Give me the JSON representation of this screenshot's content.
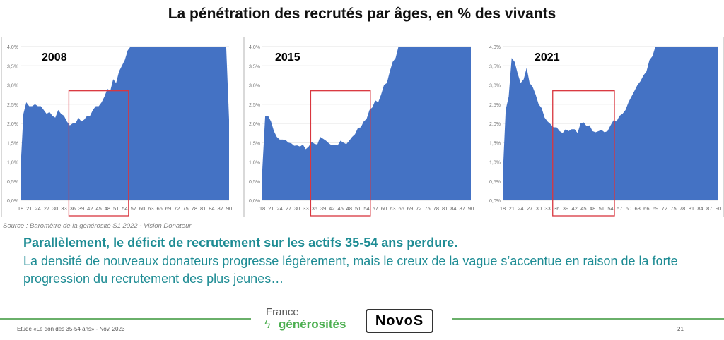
{
  "title": "La pénétration des recrutés par âges, en % des vivants",
  "source": "Source : Baromètre de la générosité S1 2022 - Vision Donateur",
  "lead": "Parallèlement, le déficit de recrutement sur les actifs 35-54 ans perdure.",
  "body": "La densité de nouveaux donateurs progresse légèrement, mais le creux de la vague s’accentue en raison de la forte progression du recrutement des plus jeunes…",
  "footer": {
    "study": "Etude «Le don des 35-54 ans» - Nov. 2023",
    "page": "21",
    "logo_france": "France",
    "logo_generosites": "générosités",
    "logo_novo": "NovoS"
  },
  "colors": {
    "area": "#4472c4",
    "highlight_box": "#d9363e",
    "text_accent": "#1e8c94",
    "footer_line": "#6ab06a"
  },
  "chart_data": [
    {
      "type": "area",
      "title": "2008",
      "x_start": 18,
      "x_end": 90,
      "xticks": [
        18,
        21,
        24,
        27,
        30,
        33,
        36,
        39,
        42,
        45,
        48,
        51,
        54,
        57,
        60,
        63,
        66,
        69,
        72,
        75,
        78,
        81,
        84,
        87,
        90
      ],
      "yticks": [
        "0,0%",
        "0,5%",
        "1,0%",
        "1,5%",
        "2,0%",
        "2,5%",
        "3,0%",
        "3,5%",
        "4,0%"
      ],
      "ylim": [
        0,
        4
      ],
      "grid": true,
      "highlight": {
        "x": [
          35,
          55
        ],
        "label": "35-54"
      },
      "values": [
        0.8,
        2.25,
        2.55,
        2.45,
        2.45,
        2.5,
        2.45,
        2.45,
        2.35,
        2.25,
        2.3,
        2.2,
        2.15,
        2.35,
        2.25,
        2.2,
        2.05,
        1.95,
        2.0,
        2.0,
        2.15,
        2.05,
        2.1,
        2.2,
        2.2,
        2.35,
        2.45,
        2.45,
        2.55,
        2.7,
        2.9,
        2.85,
        3.15,
        3.05,
        3.35,
        3.5,
        3.65,
        3.9,
        4,
        4,
        4,
        4,
        4,
        4,
        4,
        4,
        4,
        4,
        4,
        4,
        4,
        4,
        4,
        4,
        4,
        4,
        4,
        4,
        4,
        4,
        4,
        4,
        4,
        4,
        4,
        4,
        4,
        4,
        4,
        4,
        4,
        4,
        2.1
      ]
    },
    {
      "type": "area",
      "title": "2015",
      "x_start": 18,
      "x_end": 90,
      "xticks": [
        18,
        21,
        24,
        27,
        30,
        33,
        36,
        39,
        42,
        45,
        48,
        51,
        54,
        57,
        60,
        63,
        66,
        69,
        72,
        75,
        78,
        81,
        84,
        87,
        90
      ],
      "yticks": [
        "0,0%",
        "0,5%",
        "1,0%",
        "1,5%",
        "2,0%",
        "2,5%",
        "3,0%",
        "3,5%",
        "4,0%"
      ],
      "ylim": [
        0,
        4
      ],
      "grid": true,
      "highlight": {
        "x": [
          35,
          55
        ],
        "label": "35-54"
      },
      "values": [
        0.8,
        2.2,
        2.2,
        2.05,
        1.8,
        1.65,
        1.58,
        1.58,
        1.57,
        1.5,
        1.48,
        1.42,
        1.43,
        1.4,
        1.45,
        1.33,
        1.4,
        1.52,
        1.47,
        1.45,
        1.65,
        1.6,
        1.55,
        1.48,
        1.43,
        1.44,
        1.43,
        1.55,
        1.5,
        1.46,
        1.55,
        1.65,
        1.72,
        1.88,
        1.9,
        2.05,
        2.12,
        2.35,
        2.42,
        2.6,
        2.55,
        2.75,
        3.0,
        3.05,
        3.35,
        3.6,
        3.7,
        4,
        4,
        4,
        4,
        4,
        4,
        4,
        4,
        4,
        4,
        4,
        4,
        4,
        4,
        4,
        4,
        4,
        4,
        4,
        4,
        4,
        4,
        4,
        4,
        4,
        4
      ]
    },
    {
      "type": "area",
      "title": "2021",
      "x_start": 18,
      "x_end": 90,
      "xticks": [
        18,
        21,
        24,
        27,
        30,
        33,
        36,
        39,
        42,
        45,
        48,
        51,
        54,
        57,
        60,
        63,
        66,
        69,
        72,
        75,
        78,
        81,
        84,
        87,
        90
      ],
      "yticks": [
        "0,0%",
        "0,5%",
        "1,0%",
        "1,5%",
        "2,0%",
        "2,5%",
        "3,0%",
        "3,5%",
        "4,0%"
      ],
      "ylim": [
        0,
        4
      ],
      "grid": true,
      "highlight": {
        "x": [
          35,
          55
        ],
        "label": "35-54"
      },
      "values": [
        0.6,
        2.35,
        2.7,
        3.7,
        3.6,
        3.3,
        3.05,
        3.15,
        3.45,
        3.05,
        2.95,
        2.75,
        2.5,
        2.4,
        2.15,
        2.05,
        1.98,
        1.9,
        1.9,
        1.8,
        1.75,
        1.85,
        1.8,
        1.85,
        1.85,
        1.75,
        2.0,
        2.03,
        1.93,
        1.95,
        1.8,
        1.77,
        1.8,
        1.83,
        1.77,
        1.8,
        1.95,
        2.08,
        2.05,
        2.2,
        2.25,
        2.35,
        2.55,
        2.7,
        2.85,
        3.0,
        3.1,
        3.25,
        3.35,
        3.65,
        3.75,
        4,
        4,
        4,
        4,
        4,
        4,
        4,
        4,
        4,
        4,
        4,
        4,
        4,
        4,
        4,
        4,
        4,
        4,
        4,
        4,
        4,
        4
      ]
    }
  ]
}
